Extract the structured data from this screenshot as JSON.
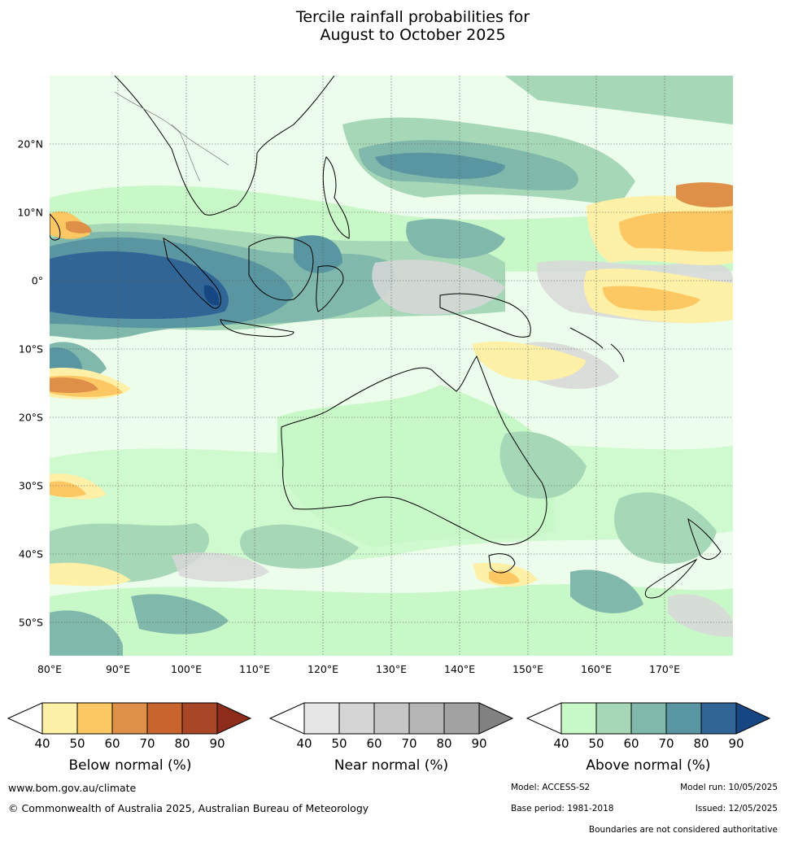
{
  "title_line1": "Tercile rainfall probabilities for",
  "title_line2": "August to October 2025",
  "lat_labels": [
    "20°N",
    "10°N",
    "0°",
    "10°S",
    "20°S",
    "30°S",
    "40°S",
    "50°S"
  ],
  "lon_labels": [
    "80°E",
    "90°E",
    "100°E",
    "110°E",
    "120°E",
    "130°E",
    "140°E",
    "150°E",
    "160°E",
    "170°E"
  ],
  "colorbars": [
    {
      "title": "Below normal (%)",
      "ticks": [
        "40",
        "50",
        "60",
        "70",
        "80",
        "90"
      ],
      "colors": [
        "#fef0a6",
        "#fdc864",
        "#de9048",
        "#c9642e",
        "#a94627",
        "#8e2c1b"
      ]
    },
    {
      "title": "Near normal (%)",
      "ticks": [
        "40",
        "50",
        "60",
        "70",
        "80",
        "90"
      ],
      "colors": [
        "#e6e6e6",
        "#d5d5d5",
        "#c6c6c6",
        "#b5b5b5",
        "#a2a2a2",
        "#828282"
      ]
    },
    {
      "title": "Above normal (%)",
      "ticks": [
        "40",
        "50",
        "60",
        "70",
        "80",
        "90"
      ],
      "colors": [
        "#c8f8c8",
        "#a6d8b8",
        "#80b8ab",
        "#5a96a2",
        "#316596",
        "#174783"
      ]
    }
  ],
  "footer": {
    "website": "www.bom.gov.au/climate",
    "copyright": "© Commonwealth of Australia 2025, Australian Bureau of Meteorology",
    "model": "Model: ACCESS-S2",
    "model_run": "Model run: 10/05/2025",
    "base_period": "Base period: 1981-2018",
    "issued": "Issued: 12/05/2025",
    "disclaimer": "Boundaries are not considered authoritative"
  }
}
